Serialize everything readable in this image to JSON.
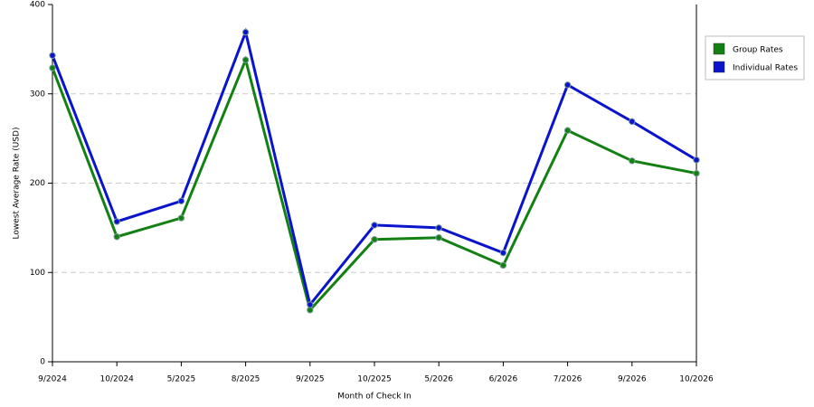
{
  "chart_data": {
    "type": "line",
    "x_label": "Month of Check In",
    "y_label": "Lowest Average Rate (USD)",
    "categories": [
      "9/2024",
      "10/2024",
      "5/2025",
      "8/2025",
      "9/2025",
      "10/2025",
      "5/2026",
      "6/2026",
      "7/2026",
      "9/2026",
      "10/2026"
    ],
    "series": [
      {
        "name": "Group Rates",
        "color": "#138013",
        "values": [
          329,
          140,
          161,
          338,
          58,
          137,
          139,
          108,
          259,
          225,
          211
        ]
      },
      {
        "name": "Individual Rates",
        "color": "#0a14cc",
        "values": [
          343,
          157,
          180,
          369,
          64,
          153,
          150,
          122,
          310,
          269,
          226
        ]
      }
    ],
    "ylim": [
      0,
      400
    ],
    "yticks": [
      0,
      100,
      200,
      300,
      400
    ],
    "grid": true,
    "legend": "right"
  }
}
